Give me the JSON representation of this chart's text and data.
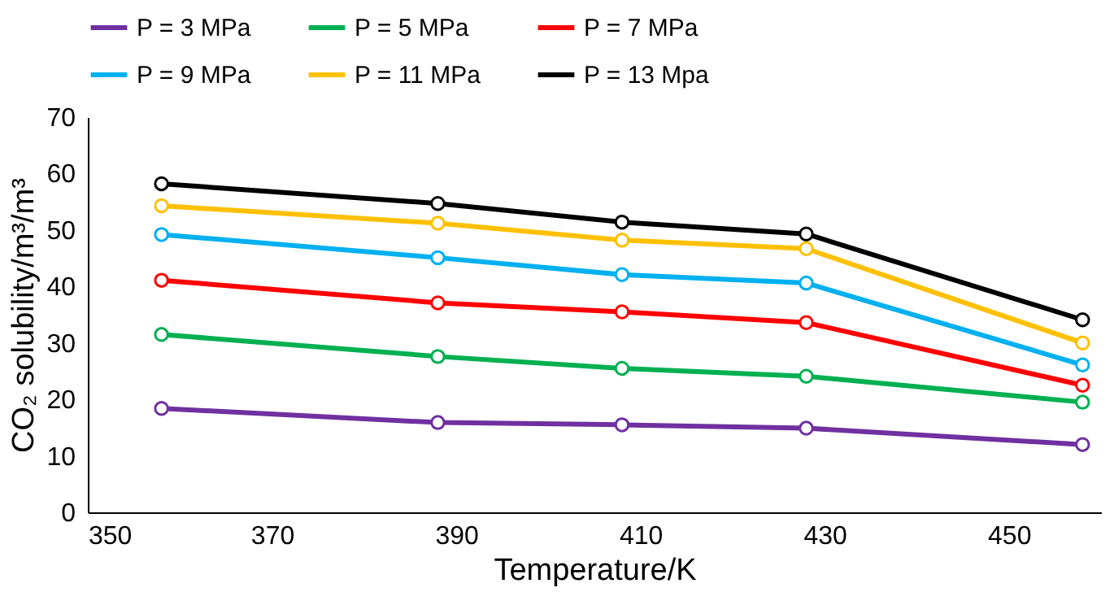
{
  "chart_data": {
    "type": "line",
    "xlabel": "Temperature/K",
    "ylabel": "CO₂ solubility/m³/m³",
    "x": [
      358,
      388,
      408,
      428,
      458
    ],
    "xlim": [
      350,
      460
    ],
    "xticks": [
      350,
      370,
      390,
      410,
      430,
      450
    ],
    "ylim": [
      0,
      70
    ],
    "yticks": [
      0,
      10,
      20,
      30,
      40,
      50,
      60,
      70
    ],
    "grid": false,
    "legend": "top",
    "marker": "circle",
    "line_style": "solid",
    "series": [
      {
        "name": "P = 3 MPa",
        "color": "#7030a0",
        "values": [
          18.4,
          15.9,
          15.5,
          14.9,
          12.0
        ]
      },
      {
        "name": "P = 5 MPa",
        "color": "#00b050",
        "values": [
          31.5,
          27.6,
          25.5,
          24.1,
          19.5
        ]
      },
      {
        "name": "P = 7 MPa",
        "color": "#ff0000",
        "values": [
          41.1,
          37.1,
          35.5,
          33.6,
          22.5
        ]
      },
      {
        "name": "P = 9 MPa",
        "color": "#00b0f0",
        "values": [
          49.2,
          45.1,
          42.1,
          40.6,
          26.1
        ]
      },
      {
        "name": "P = 11 MPa",
        "color": "#ffc000",
        "values": [
          54.3,
          51.2,
          48.2,
          46.7,
          30.0
        ]
      },
      {
        "name": "P = 13 Mpa",
        "color": "#000000",
        "values": [
          58.2,
          54.7,
          51.4,
          49.3,
          34.1
        ]
      }
    ]
  }
}
